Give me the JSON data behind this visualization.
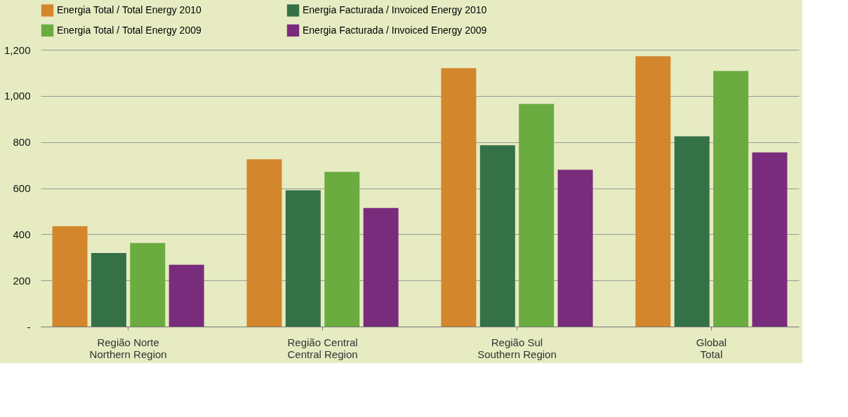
{
  "chart_data": {
    "type": "bar",
    "categories": [
      "Região Norte\nNorthern Region",
      "Região Central\nCentral Region",
      "Região Sul\nSouthern Region",
      "Global\nTotal"
    ],
    "series": [
      {
        "name": "Energia Total / Total Energy 2010",
        "color": "#d3862b",
        "values": [
          435,
          725,
          1120,
          1172
        ]
      },
      {
        "name": "Energia Facturada / Invoiced Energy 2010",
        "color": "#347146",
        "values": [
          319,
          591,
          786,
          825
        ]
      },
      {
        "name": "Energia Total / Total Energy 2009",
        "color": "#6aac40",
        "values": [
          362,
          671,
          965,
          1108
        ]
      },
      {
        "name": "Energia Facturada / Invoiced Energy 2009",
        "color": "#7a2c7c",
        "values": [
          268,
          514,
          680,
          755
        ]
      }
    ],
    "ylim": [
      0,
      1200
    ],
    "yticks": [
      {
        "value": 0,
        "label": "-"
      },
      200,
      400,
      600,
      800,
      {
        "value": 1000,
        "label": "1,000"
      },
      {
        "value": 1200,
        "label": "1,200"
      }
    ],
    "grid": "y",
    "legend": "top"
  }
}
